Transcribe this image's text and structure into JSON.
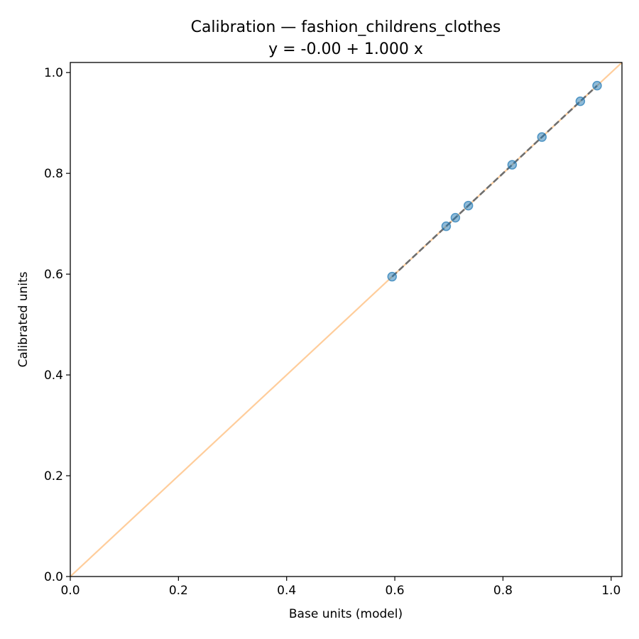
{
  "chart_data": {
    "type": "scatter",
    "title": "Calibration — fashion_childrens_clothes",
    "subtitle": "y = -0.00 + 1.000 x",
    "xlabel": "Base units (model)",
    "ylabel": "Calibrated units",
    "xlim": [
      0.0,
      1.02
    ],
    "ylim": [
      0.0,
      1.02
    ],
    "xticks": [
      0.0,
      0.2,
      0.4,
      0.6,
      0.8,
      1.0
    ],
    "xtick_labels": [
      "0.0",
      "0.2",
      "0.4",
      "0.6",
      "0.8",
      "1.0"
    ],
    "yticks": [
      0.0,
      0.2,
      0.4,
      0.6,
      0.8,
      1.0
    ],
    "ytick_labels": [
      "0.0",
      "0.2",
      "0.4",
      "0.6",
      "0.8",
      "1.0"
    ],
    "grid": false,
    "identity_line": {
      "x": [
        0.0,
        1.02
      ],
      "y": [
        0.0,
        1.02
      ],
      "color": "#ffc48a"
    },
    "fit_line": {
      "intercept": -0.0,
      "slope": 1.0,
      "x": [
        0.595,
        0.974
      ],
      "color": "#6e6e6e"
    },
    "points": {
      "color": "#1f77b4",
      "x": [
        0.595,
        0.695,
        0.712,
        0.736,
        0.817,
        0.872,
        0.943,
        0.974
      ],
      "y": [
        0.595,
        0.695,
        0.712,
        0.736,
        0.817,
        0.872,
        0.943,
        0.974
      ]
    }
  }
}
